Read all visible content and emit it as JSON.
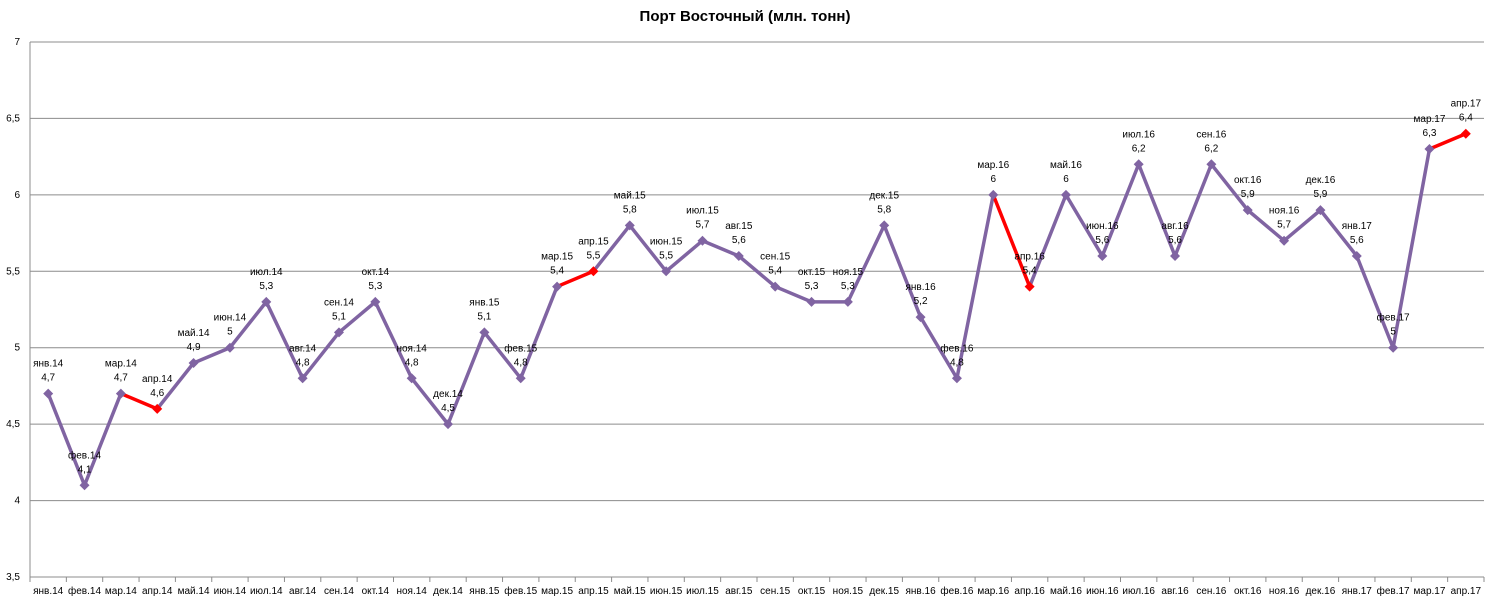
{
  "chart_data": {
    "type": "line",
    "title": "Порт Восточный (млн. тонн)",
    "xlabel": "",
    "ylabel": "",
    "ylim": [
      3.5,
      7
    ],
    "yticks": [
      3.5,
      4,
      4.5,
      5,
      5.5,
      6,
      6.5,
      7
    ],
    "ytick_labels": [
      "3,5",
      "4",
      "4,5",
      "5",
      "5,5",
      "6",
      "6,5",
      "7"
    ],
    "grid": true,
    "legend": "none",
    "colors": {
      "line": "#8064A2",
      "highlight": "#FF0000",
      "grid": "#8C8C8C"
    },
    "categories": [
      "янв.14",
      "фев.14",
      "мар.14",
      "апр.14",
      "май.14",
      "июн.14",
      "июл.14",
      "авг.14",
      "сен.14",
      "окт.14",
      "ноя.14",
      "дек.14",
      "янв.15",
      "фев.15",
      "мар.15",
      "апр.15",
      "май.15",
      "июн.15",
      "июл.15",
      "авг.15",
      "сен.15",
      "окт.15",
      "ноя.15",
      "дек.15",
      "янв.16",
      "фев.16",
      "мар.16",
      "апр.16",
      "май.16",
      "июн.16",
      "июл.16",
      "авг.16",
      "сен.16",
      "окт.16",
      "ноя.16",
      "дек.16",
      "янв.17",
      "фев.17",
      "мар.17",
      "апр.17"
    ],
    "values": [
      4.7,
      4.1,
      4.7,
      4.6,
      4.9,
      5.0,
      5.3,
      4.8,
      5.1,
      5.3,
      4.8,
      4.5,
      5.1,
      4.8,
      5.4,
      5.5,
      5.8,
      5.5,
      5.7,
      5.6,
      5.4,
      5.3,
      5.3,
      5.8,
      5.2,
      4.8,
      6.0,
      5.4,
      6.0,
      5.6,
      6.2,
      5.6,
      6.2,
      5.9,
      5.7,
      5.9,
      5.6,
      5.0,
      6.3,
      6.4
    ],
    "value_labels": [
      "4,7",
      "4,1",
      "4,7",
      "4,6",
      "4,9",
      "5",
      "5,3",
      "4,8",
      "5,1",
      "5,3",
      "4,8",
      "4,5",
      "5,1",
      "4,8",
      "5,4",
      "5,5",
      "5,8",
      "5,5",
      "5,7",
      "5,6",
      "5,4",
      "5,3",
      "5,3",
      "5,8",
      "5,2",
      "4,8",
      "6",
      "5,4",
      "6",
      "5,6",
      "6,2",
      "5,6",
      "6,2",
      "5,9",
      "5,7",
      "5,9",
      "5,6",
      "5",
      "6,3",
      "6,4"
    ],
    "highlight_segments": [
      [
        2,
        3
      ],
      [
        14,
        15
      ],
      [
        26,
        27
      ],
      [
        38,
        39
      ]
    ]
  }
}
